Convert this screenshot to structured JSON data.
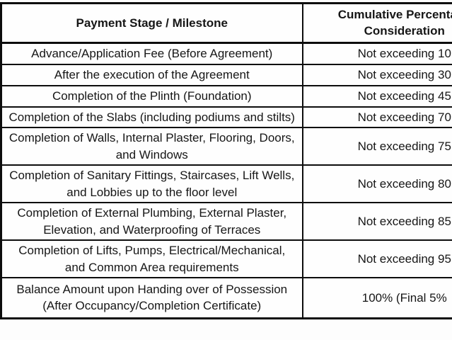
{
  "table": {
    "header": {
      "stage": "Payment Stage / Milestone",
      "consideration_line1": "Cumulative Percentage",
      "consideration_line2": "Consideration"
    },
    "rows": [
      {
        "stage": "Advance/Application Fee (Before Agreement)",
        "value": "Not exceeding 10"
      },
      {
        "stage": "After the execution of the Agreement",
        "value": "Not exceeding 30"
      },
      {
        "stage": "Completion of the Plinth (Foundation)",
        "value": "Not exceeding 45"
      },
      {
        "stage": "Completion of the Slabs (including podiums and stilts)",
        "value": "Not exceeding 70"
      },
      {
        "stage": "Completion of Walls, Internal Plaster, Flooring, Doors, and Windows",
        "value": "Not exceeding 75"
      },
      {
        "stage": "Completion of Sanitary Fittings, Staircases, Lift Wells, and Lobbies up to the floor level",
        "value": "Not exceeding 80"
      },
      {
        "stage": "Completion of External Plumbing, External Plaster, Elevation, and Waterproofing of Terraces",
        "value": "Not exceeding 85"
      },
      {
        "stage": "Completion of Lifts, Pumps, Electrical/Mechanical, and Common Area requirements",
        "value": "Not exceeding 95"
      },
      {
        "stage": "Balance Amount upon Handing over of Possession (After Occupancy/Completion Certificate)",
        "value": "100% (Final 5%"
      }
    ],
    "colors": {
      "border": "#0d0d0d",
      "text": "#161616",
      "background": "#fefefe"
    }
  }
}
